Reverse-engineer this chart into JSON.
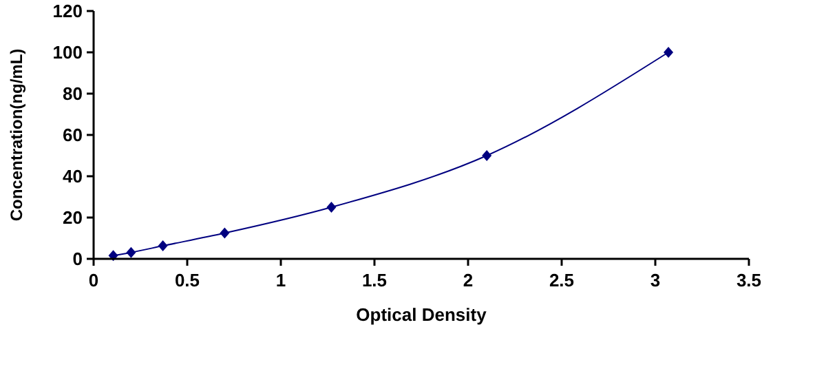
{
  "chart_data": {
    "type": "line",
    "xlabel": "Optical Density",
    "ylabel": "Concentration(ng/mL)",
    "x": [
      0.105,
      0.2,
      0.37,
      0.7,
      1.27,
      2.1,
      3.07
    ],
    "series": [
      {
        "color": "#000080",
        "values": [
          1.6,
          3.1,
          6.3,
          12.5,
          25,
          50,
          100
        ]
      }
    ],
    "xlim": [
      0,
      3.5
    ],
    "xticks": [
      0,
      0.5,
      1,
      1.5,
      2,
      2.5,
      3,
      3.5
    ],
    "ylim": [
      0,
      120
    ],
    "yticks": [
      0,
      20,
      40,
      60,
      80,
      100,
      120
    ],
    "marker": "diamond",
    "line_style": "solid",
    "grid": false
  }
}
